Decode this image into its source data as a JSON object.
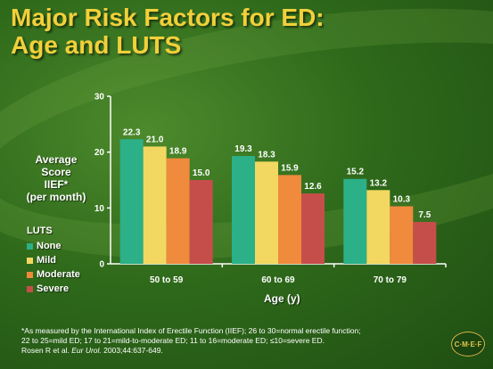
{
  "title_line1": "Major Risk Factors for ED:",
  "title_line2": "Age and LUTS",
  "ylabel_lines": [
    "Average",
    "Score",
    "IIEF*",
    "(per month)"
  ],
  "legend": {
    "title": "LUTS",
    "items": [
      {
        "label": "None",
        "color": "#2bb088"
      },
      {
        "label": "Mild",
        "color": "#f2d860"
      },
      {
        "label": "Moderate",
        "color": "#f08a3c"
      },
      {
        "label": "Severe",
        "color": "#c64e4a"
      }
    ]
  },
  "chart_data": {
    "type": "bar",
    "categories": [
      "50 to 59",
      "60 to 69",
      "70 to 79"
    ],
    "series": [
      {
        "name": "None",
        "color": "#2bb088",
        "values": [
          22.3,
          19.3,
          15.2
        ]
      },
      {
        "name": "Mild",
        "color": "#f2d860",
        "values": [
          21.0,
          18.3,
          13.2
        ]
      },
      {
        "name": "Moderate",
        "color": "#f08a3c",
        "values": [
          18.9,
          15.9,
          10.3
        ]
      },
      {
        "name": "Severe",
        "color": "#c64e4a",
        "values": [
          15.0,
          12.6,
          7.5
        ]
      }
    ],
    "xlabel": "Age (y)",
    "ylabel": "Average Score IIEF* (per month)",
    "ylim": [
      0,
      30
    ],
    "yticks": [
      0,
      10,
      20,
      30
    ],
    "grid": false,
    "legend_position": "left"
  },
  "footnote_lines": [
    "*As measured by the International Index of Erectile Function (IIEF); 26 to 30=normal erectile function;",
    "22 to 25=mild ED; 17 to 21=mild-to-moderate ED; 11 to 16=moderate ED; ≤10=severe ED."
  ],
  "citation": {
    "authors": "Rosen R et al. ",
    "journal": "Eur Urol.",
    "details": " 2003;44:637-649."
  },
  "logo_text": "C·M·E·F"
}
